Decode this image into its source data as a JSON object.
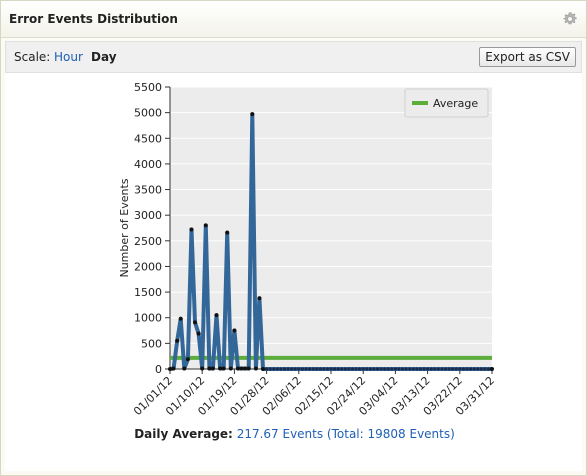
{
  "header": {
    "title": "Error Events Distribution",
    "settings_icon": "gear-icon"
  },
  "toolbar": {
    "scale_label": "Scale:",
    "scale_options": [
      "Hour",
      "Day"
    ],
    "selected_scale": "Day",
    "export_label": "Export as CSV"
  },
  "footer": {
    "label": "Daily Average:",
    "value_text": "217.67 Events (Total: 19808 Events)"
  },
  "colors": {
    "series": "#336699",
    "average": "#5cad3c",
    "link": "#1f5fb5",
    "plot_bg": "#ececec"
  },
  "chart_data": {
    "type": "line",
    "ylabel": "Number of Events",
    "ylim": [
      0,
      5500
    ],
    "yticks": [
      0,
      500,
      1000,
      1500,
      2000,
      2500,
      3000,
      3500,
      4000,
      4500,
      5000,
      5500
    ],
    "xticks": [
      "01/01/12",
      "01/10/12",
      "01/19/12",
      "01/28/12",
      "02/06/12",
      "02/15/12",
      "02/24/12",
      "03/04/12",
      "03/13/12",
      "03/22/12",
      "03/31/12"
    ],
    "xlim_days": [
      0,
      90
    ],
    "legend": {
      "entries": [
        "Average"
      ],
      "position": "top-right"
    },
    "grid": true,
    "average": 217.67,
    "series": [
      {
        "values": [
          {
            "day": 0,
            "v": 0
          },
          {
            "day": 1,
            "v": 10
          },
          {
            "day": 2,
            "v": 550
          },
          {
            "day": 3,
            "v": 980
          },
          {
            "day": 4,
            "v": 10
          },
          {
            "day": 5,
            "v": 190
          },
          {
            "day": 6,
            "v": 2720
          },
          {
            "day": 7,
            "v": 910
          },
          {
            "day": 8,
            "v": 690
          },
          {
            "day": 9,
            "v": 10
          },
          {
            "day": 10,
            "v": 2800
          },
          {
            "day": 11,
            "v": 10
          },
          {
            "day": 12,
            "v": 10
          },
          {
            "day": 13,
            "v": 1050
          },
          {
            "day": 14,
            "v": 10
          },
          {
            "day": 15,
            "v": 10
          },
          {
            "day": 16,
            "v": 2660
          },
          {
            "day": 17,
            "v": 10
          },
          {
            "day": 18,
            "v": 750
          },
          {
            "day": 19,
            "v": 10
          },
          {
            "day": 20,
            "v": 10
          },
          {
            "day": 21,
            "v": 10
          },
          {
            "day": 22,
            "v": 10
          },
          {
            "day": 23,
            "v": 4970
          },
          {
            "day": 24,
            "v": 10
          },
          {
            "day": 25,
            "v": 1380
          },
          {
            "day": 26,
            "v": 0
          },
          {
            "day": 90,
            "v": 0
          }
        ]
      }
    ]
  }
}
